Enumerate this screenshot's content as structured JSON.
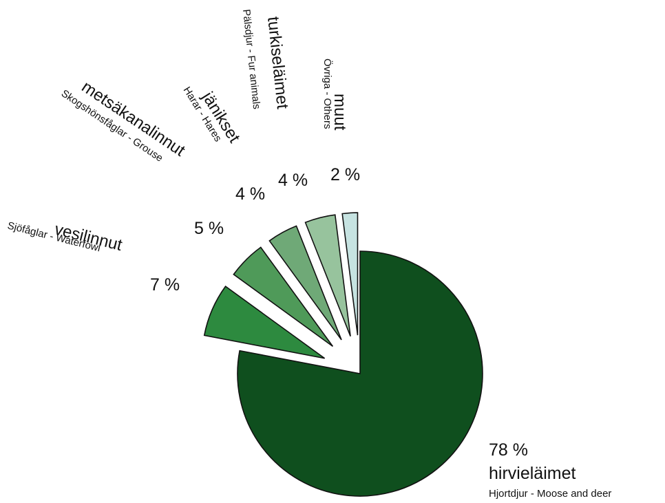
{
  "chart_data": {
    "type": "pie",
    "title": "",
    "slices": [
      {
        "label": "hirvieläimet",
        "sublabel": "Hjortdjur - Moose and deer",
        "value": 78,
        "value_label": "78 %",
        "color": "#0f4f1e",
        "exploded": false
      },
      {
        "label": "vesilinnut",
        "sublabel": "Sjöfåglar - Waterfowl",
        "value": 7,
        "value_label": "7 %",
        "color": "#2d8a3f",
        "exploded": true
      },
      {
        "label": "metsäkanalinnut",
        "sublabel": "Skogshönsfåglar - Grouse",
        "value": 5,
        "value_label": "5 %",
        "color": "#4f9a59",
        "exploded": true
      },
      {
        "label": "jänikset",
        "sublabel": "Harar - Hares",
        "value": 4,
        "value_label": "4 %",
        "color": "#6fa977",
        "exploded": true
      },
      {
        "label": "turkiseläimet",
        "sublabel": "Pälsdjur - Fur animals",
        "value": 4,
        "value_label": "4 %",
        "color": "#97c39d",
        "exploded": true
      },
      {
        "label": "muut",
        "sublabel": "Övriga - Others",
        "value": 2,
        "value_label": "2 %",
        "color": "#c6e3e1",
        "exploded": true
      }
    ]
  }
}
